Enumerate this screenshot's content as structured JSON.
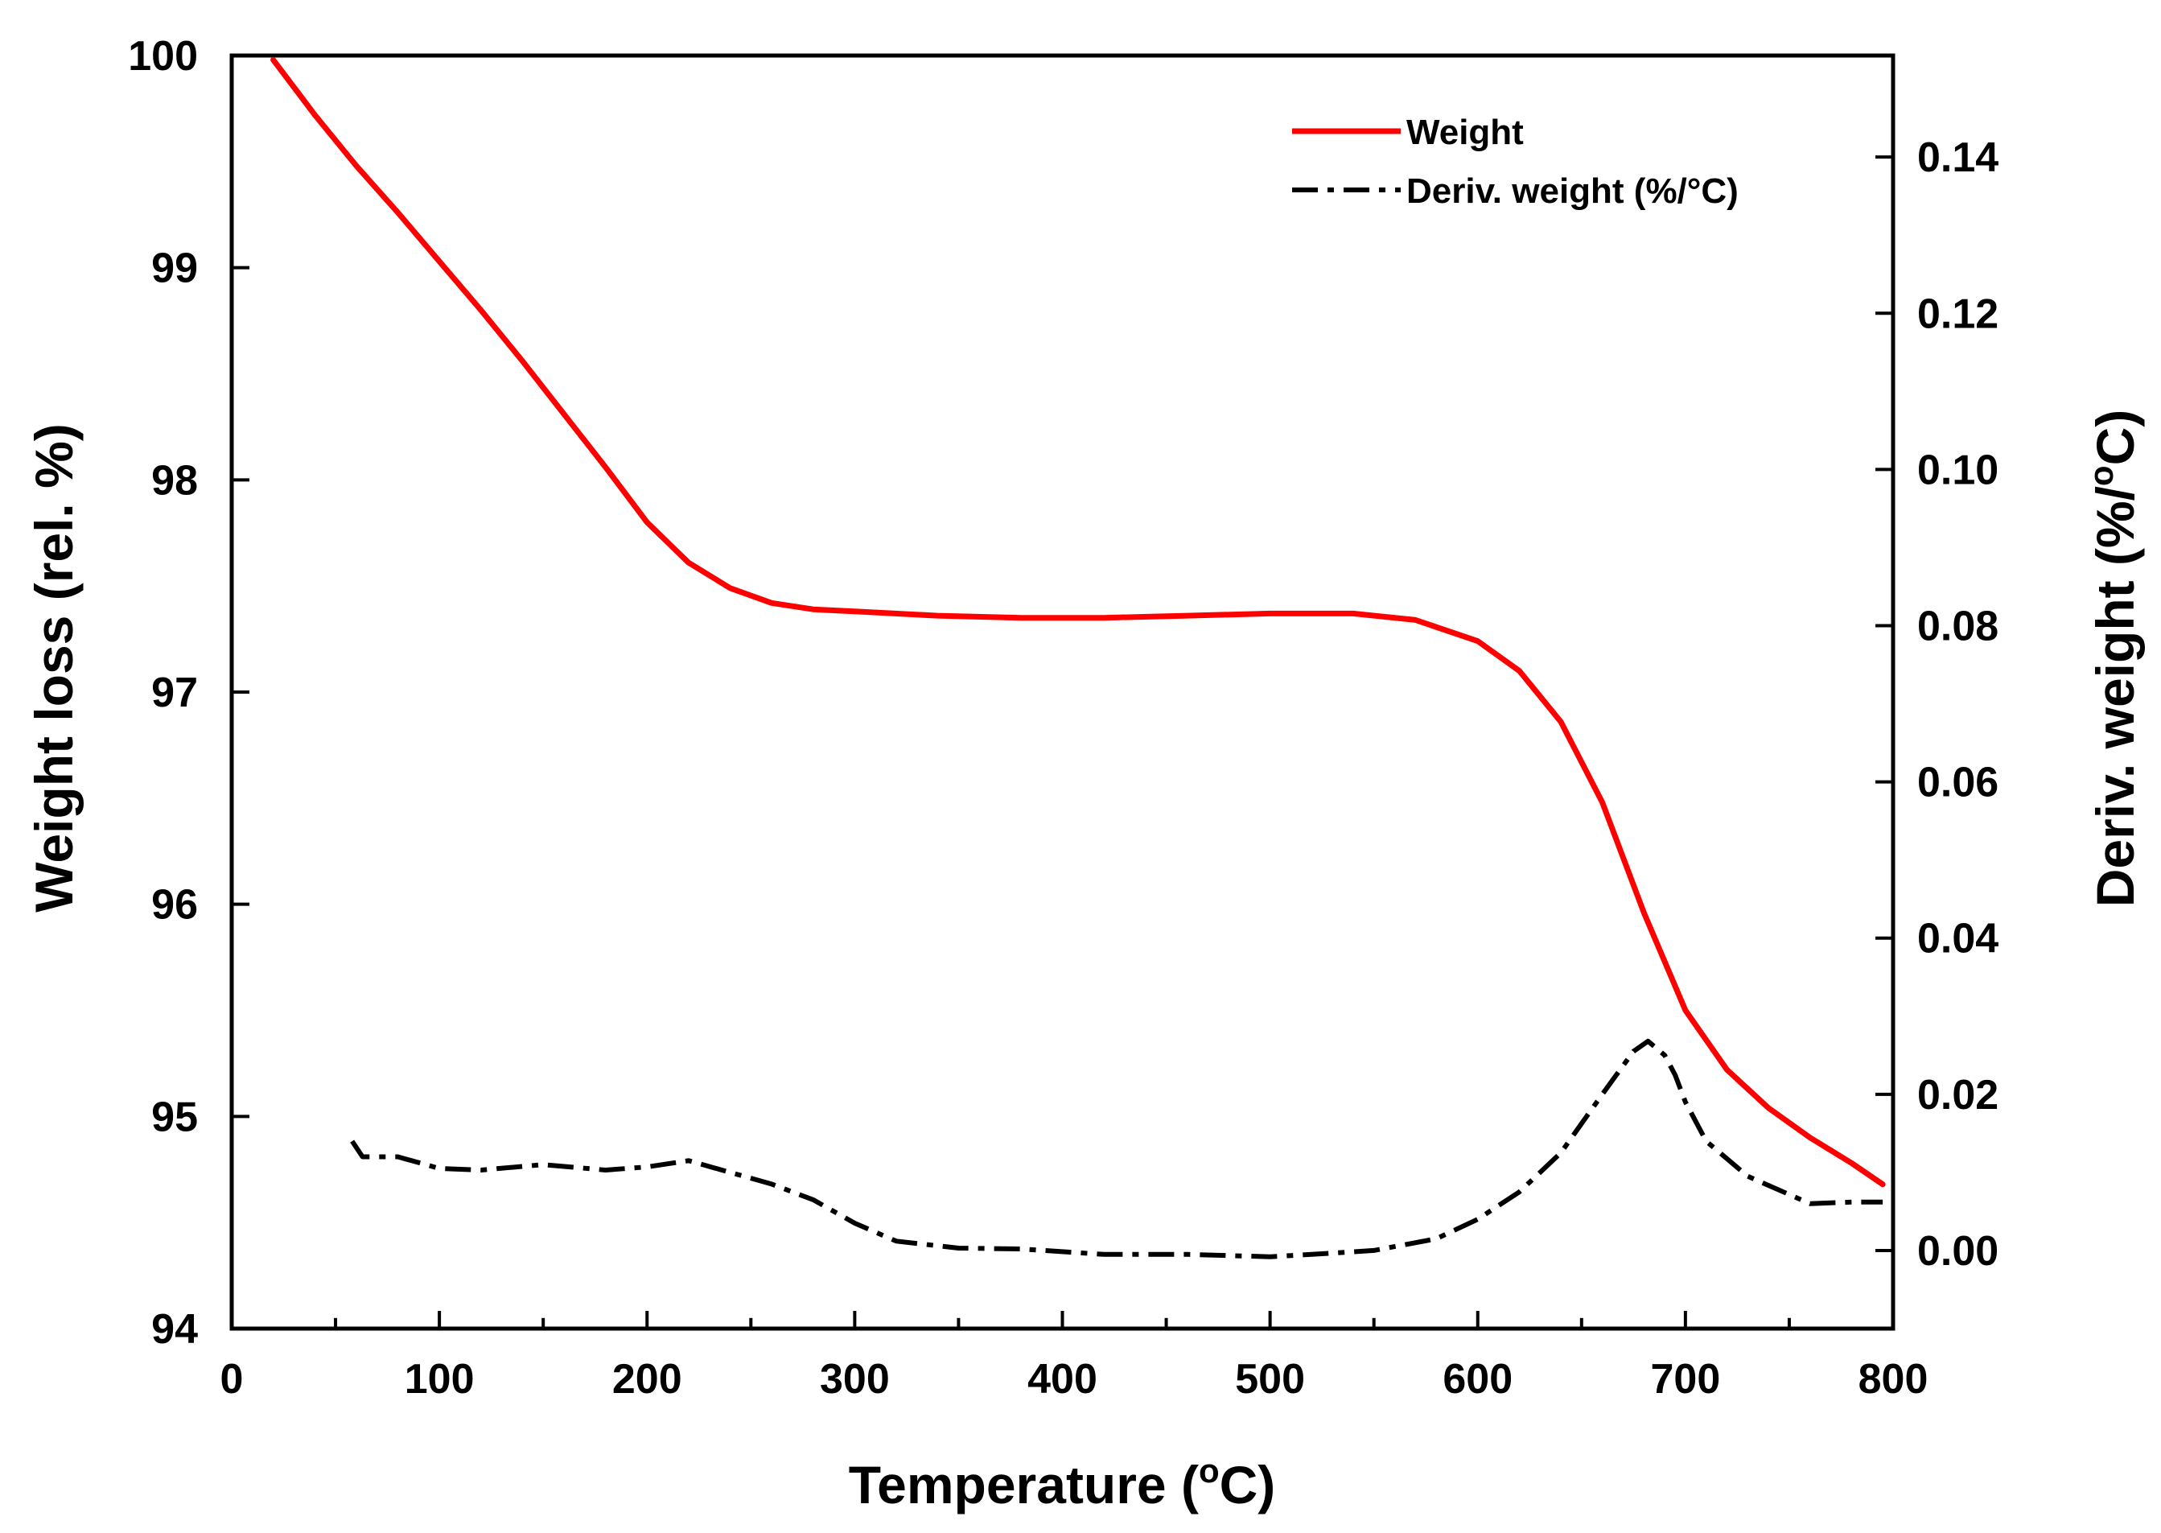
{
  "chart_data": {
    "type": "line",
    "xlabel": "Temperature (",
    "xlabel_sup": "o",
    "xlabel_end": "C)",
    "ylabel_left": "Weight loss (rel. %)",
    "ylabel_right": "Deriv. weight (%/",
    "ylabel_right_sup": "o",
    "ylabel_right_end": "C)",
    "xlim": [
      0,
      800
    ],
    "ylim_left": [
      94,
      100
    ],
    "ylim_right": [
      -0.01,
      0.153
    ],
    "x_ticks": [
      0,
      100,
      200,
      300,
      400,
      500,
      600,
      700,
      800
    ],
    "x_tick_labels": [
      "0",
      "100",
      "200",
      "300",
      "400",
      "500",
      "600",
      "700",
      "800"
    ],
    "y_left_ticks": [
      94,
      95,
      96,
      97,
      98,
      99,
      100
    ],
    "y_left_tick_labels": [
      "94",
      "95",
      "96",
      "97",
      "98",
      "99",
      "100"
    ],
    "y_right_ticks": [
      0.0,
      0.02,
      0.04,
      0.06,
      0.08,
      0.1,
      0.12,
      0.14
    ],
    "y_right_tick_labels": [
      "0.00",
      "0.02",
      "0.04",
      "0.06",
      "0.08",
      "0.10",
      "0.12",
      "0.14"
    ],
    "legend": {
      "position": "top-right",
      "entries": [
        "Weight",
        "Deriv. weight (%/°C)"
      ]
    },
    "grid": false,
    "series": [
      {
        "name": "Weight",
        "axis": "left",
        "color": "#ff0000",
        "style": "solid",
        "x": [
          20,
          40,
          60,
          80,
          100,
          120,
          140,
          160,
          180,
          200,
          220,
          240,
          260,
          280,
          300,
          340,
          380,
          420,
          460,
          500,
          540,
          570,
          600,
          620,
          640,
          660,
          680,
          700,
          720,
          740,
          760,
          780,
          795
        ],
        "y": [
          99.98,
          99.72,
          99.48,
          99.26,
          99.03,
          98.8,
          98.56,
          98.31,
          98.06,
          97.8,
          97.61,
          97.49,
          97.42,
          97.39,
          97.38,
          97.36,
          97.35,
          97.35,
          97.36,
          97.37,
          97.37,
          97.34,
          97.24,
          97.1,
          96.86,
          96.48,
          95.96,
          95.5,
          95.22,
          95.04,
          94.9,
          94.78,
          94.68
        ]
      },
      {
        "name": "Deriv. weight (%/°C)",
        "axis": "right",
        "color": "#000000",
        "style": "dash-dot",
        "x": [
          58,
          63,
          80,
          100,
          120,
          150,
          180,
          200,
          220,
          240,
          260,
          280,
          300,
          320,
          350,
          380,
          420,
          460,
          500,
          520,
          550,
          580,
          600,
          620,
          640,
          660,
          675,
          682,
          690,
          695,
          700,
          710,
          730,
          760,
          780,
          795
        ],
        "y": [
          0.014,
          0.012,
          0.012,
          0.0105,
          0.0103,
          0.011,
          0.0103,
          0.0107,
          0.0115,
          0.01,
          0.0085,
          0.0065,
          0.0035,
          0.0012,
          0.0003,
          0.0002,
          -0.0005,
          -0.0005,
          -0.0008,
          -0.0005,
          0.0,
          0.0015,
          0.004,
          0.0075,
          0.0125,
          0.02,
          0.0255,
          0.0268,
          0.025,
          0.0225,
          0.019,
          0.014,
          0.0095,
          0.006,
          0.0062,
          0.0062
        ]
      }
    ]
  }
}
